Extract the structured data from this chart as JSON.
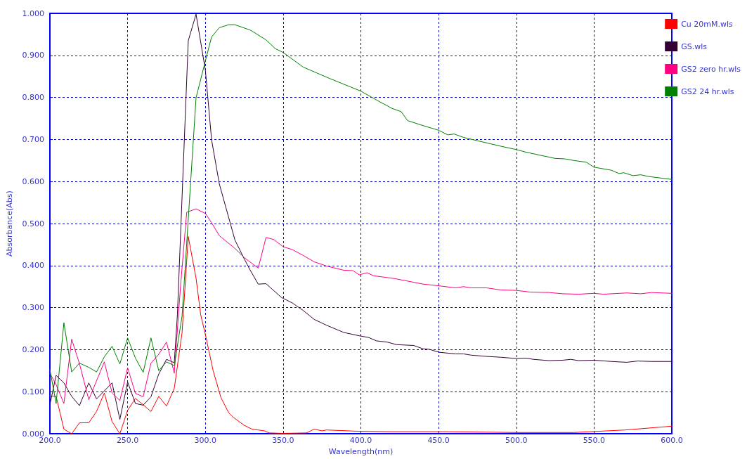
{
  "chart_data": {
    "type": "line",
    "xlabel": "Wavelength(nm)",
    "ylabel": "Absorbance(Abs)",
    "xlim": [
      200,
      600
    ],
    "xticks": [
      {
        "value": 200,
        "label": "200.0"
      },
      {
        "value": 250,
        "label": "250.0"
      },
      {
        "value": 300,
        "label": "300.0"
      },
      {
        "value": 350,
        "label": "350.0"
      },
      {
        "value": 400,
        "label": "400.0"
      },
      {
        "value": 450,
        "label": "450.0"
      },
      {
        "value": 500,
        "label": "500.0"
      },
      {
        "value": 550,
        "label": "550.0"
      },
      {
        "value": 600,
        "label": "600.0"
      }
    ],
    "ylim": [
      0,
      1
    ],
    "yticks": [
      {
        "value": 0,
        "label": "0.000"
      },
      {
        "value": 0.1,
        "label": "0.100"
      },
      {
        "value": 0.2,
        "label": "0.200"
      },
      {
        "value": 0.3,
        "label": "0.300"
      },
      {
        "value": 0.4,
        "label": "0.400"
      },
      {
        "value": 0.5,
        "label": "0.500"
      },
      {
        "value": 0.6,
        "label": "0.600"
      },
      {
        "value": 0.7,
        "label": "0.700"
      },
      {
        "value": 0.8,
        "label": "0.800"
      },
      {
        "value": 0.9,
        "label": "0.900"
      },
      {
        "value": 1,
        "label": "1.000"
      }
    ],
    "grid": true,
    "legend": "right",
    "marker": "none",
    "line_style": "solid",
    "series": [
      {
        "name": "Cu 20mM.wls",
        "color": "#ff0000",
        "x": [
          200,
          204,
          209,
          214,
          219,
          225,
          230,
          235,
          240,
          245,
          250,
          255,
          260,
          265,
          270,
          275,
          280,
          285,
          289,
          294,
          297,
          300,
          305,
          310,
          315,
          318,
          325,
          330,
          338,
          341,
          350,
          365,
          370,
          375,
          378,
          398,
          420,
          453,
          500,
          537,
          570,
          600
        ],
        "values": [
          0.09,
          0.089,
          0.011,
          0.0,
          0.026,
          0.026,
          0.053,
          0.097,
          0.029,
          0.0,
          0.056,
          0.084,
          0.069,
          0.053,
          0.089,
          0.066,
          0.108,
          0.24,
          0.469,
          0.37,
          0.283,
          0.236,
          0.15,
          0.086,
          0.05,
          0.039,
          0.02,
          0.011,
          0.007,
          0.002,
          0.001,
          0.002,
          0.011,
          0.007,
          0.009,
          0.006,
          0.005,
          0.005,
          0.003,
          0.003,
          0.009,
          0.018
        ]
      },
      {
        "name": "GS.wls",
        "color": "#330033",
        "x": [
          200,
          204,
          209,
          214,
          219,
          225,
          230,
          240,
          245,
          250,
          255,
          260,
          265,
          270,
          275,
          280,
          282,
          289,
          294,
          300,
          304,
          309,
          319,
          325,
          329,
          334,
          339,
          349,
          356,
          363,
          370,
          378,
          389,
          399,
          405,
          410,
          417,
          423,
          434,
          440,
          444,
          450,
          461,
          466,
          471,
          481,
          490,
          500,
          506,
          511,
          521,
          530,
          535,
          540,
          550,
          561,
          571,
          578,
          587,
          600
        ],
        "values": [
          0.069,
          0.139,
          0.121,
          0.089,
          0.067,
          0.121,
          0.083,
          0.121,
          0.034,
          0.123,
          0.072,
          0.068,
          0.088,
          0.142,
          0.177,
          0.169,
          0.283,
          0.935,
          0.998,
          0.865,
          0.699,
          0.594,
          0.461,
          0.416,
          0.388,
          0.356,
          0.357,
          0.324,
          0.311,
          0.293,
          0.272,
          0.258,
          0.241,
          0.233,
          0.229,
          0.221,
          0.218,
          0.212,
          0.21,
          0.202,
          0.201,
          0.194,
          0.19,
          0.19,
          0.187,
          0.184,
          0.182,
          0.179,
          0.18,
          0.177,
          0.174,
          0.175,
          0.177,
          0.174,
          0.175,
          0.172,
          0.17,
          0.173,
          0.172,
          0.172
        ]
      },
      {
        "name": "GS2 zero hr.wls",
        "color": "#ff0080",
        "x": [
          200,
          204,
          209,
          214,
          219,
          225,
          235,
          240,
          245,
          250,
          255,
          260,
          265,
          270,
          275,
          280,
          284,
          288,
          294,
          300,
          304,
          309,
          319,
          325,
          334,
          339,
          344,
          350,
          356,
          363,
          370,
          378,
          389,
          395,
          399,
          404,
          408,
          422,
          440,
          450,
          461,
          466,
          471,
          481,
          490,
          500,
          509,
          521,
          530,
          540,
          550,
          556,
          571,
          580,
          587,
          600
        ],
        "values": [
          0.144,
          0.117,
          0.072,
          0.225,
          0.167,
          0.081,
          0.171,
          0.097,
          0.079,
          0.157,
          0.096,
          0.088,
          0.168,
          0.189,
          0.218,
          0.144,
          0.35,
          0.527,
          0.535,
          0.524,
          0.502,
          0.471,
          0.441,
          0.419,
          0.394,
          0.467,
          0.462,
          0.445,
          0.438,
          0.424,
          0.409,
          0.399,
          0.389,
          0.388,
          0.378,
          0.383,
          0.376,
          0.369,
          0.356,
          0.352,
          0.347,
          0.35,
          0.347,
          0.347,
          0.342,
          0.341,
          0.337,
          0.336,
          0.333,
          0.332,
          0.334,
          0.332,
          0.335,
          0.333,
          0.336,
          0.334
        ]
      },
      {
        "name": "GS2 24 hr.wls",
        "color": "#008000",
        "x": [
          200,
          204,
          209,
          214,
          219,
          225,
          230,
          235,
          240,
          245,
          250,
          255,
          260,
          265,
          270,
          275,
          280,
          285,
          294,
          300,
          304,
          309,
          315,
          319,
          329,
          339,
          345,
          350,
          363,
          380,
          400,
          410,
          420,
          426,
          430,
          440,
          450,
          456,
          460,
          466,
          475,
          490,
          500,
          506,
          516,
          525,
          531,
          537,
          545,
          550,
          561,
          566,
          569,
          575,
          580,
          585,
          600
        ],
        "values": [
          0.153,
          0.072,
          0.264,
          0.147,
          0.168,
          0.158,
          0.147,
          0.183,
          0.208,
          0.166,
          0.228,
          0.18,
          0.146,
          0.228,
          0.15,
          0.171,
          0.162,
          0.28,
          0.799,
          0.887,
          0.944,
          0.966,
          0.973,
          0.973,
          0.96,
          0.937,
          0.916,
          0.907,
          0.872,
          0.845,
          0.815,
          0.794,
          0.774,
          0.766,
          0.745,
          0.733,
          0.722,
          0.711,
          0.713,
          0.705,
          0.697,
          0.684,
          0.676,
          0.67,
          0.662,
          0.655,
          0.654,
          0.65,
          0.646,
          0.634,
          0.627,
          0.619,
          0.621,
          0.614,
          0.616,
          0.612,
          0.605
        ]
      }
    ]
  }
}
